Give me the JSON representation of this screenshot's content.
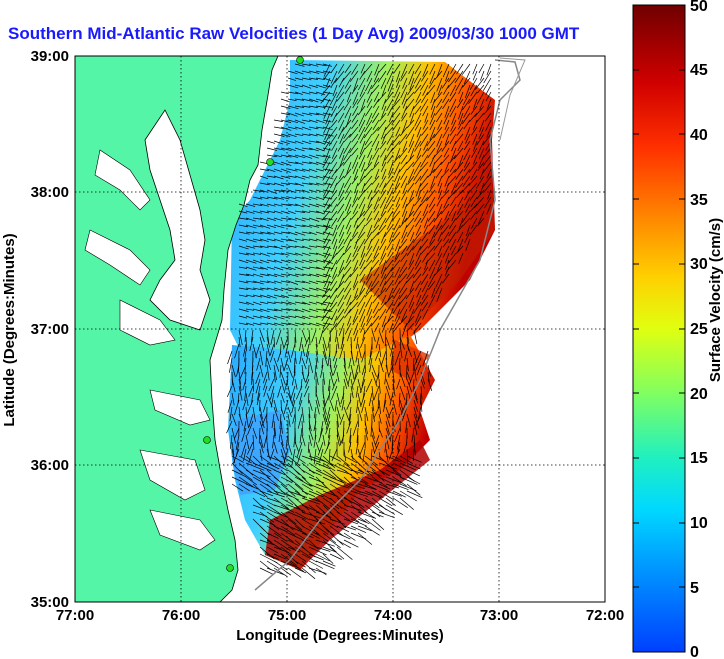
{
  "title": "Southern Mid-Atlantic Raw Velocities (1 Day Avg) 2009/03/30 1000 GMT",
  "x_axis": {
    "label": "Longitude (Degrees:Minutes)",
    "ticks": [
      "77:00",
      "76:00",
      "75:00",
      "74:00",
      "73:00",
      "72:00"
    ]
  },
  "y_axis": {
    "label": "Latitude (Degrees:Minutes)",
    "ticks": [
      "35:00",
      "36:00",
      "37:00",
      "38:00",
      "39:00"
    ]
  },
  "colorbar": {
    "label": "Surface Velocity (cm/s)",
    "ticks": [
      "0",
      "5",
      "10",
      "15",
      "20",
      "25",
      "30",
      "35",
      "40",
      "45",
      "50"
    ],
    "min": 0,
    "max": 50
  },
  "colors": {
    "land": "#55f5a8",
    "title": "#1a1aff",
    "station": "#22dd22"
  }
}
